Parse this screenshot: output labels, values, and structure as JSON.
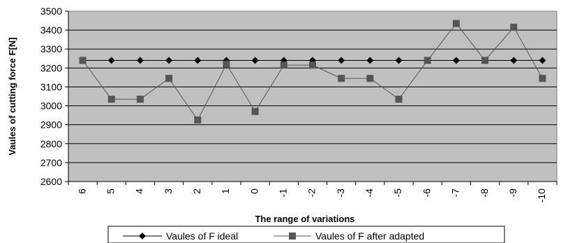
{
  "chart_data": {
    "type": "line",
    "title": "",
    "xlabel": "The range of  variations",
    "ylabel": "Vaules of cutting force F[N]",
    "categories": [
      "6",
      "5",
      "4",
      "3",
      "2",
      "1",
      "0",
      "-1",
      "-2",
      "-3",
      "-4",
      "-5",
      "-6",
      "-7",
      "-8",
      "-9",
      "-10"
    ],
    "y_ticks": [
      "3500",
      "3400",
      "3300",
      "3200",
      "3100",
      "3000",
      "2900",
      "2800",
      "2700",
      "2600"
    ],
    "ylim": [
      2600,
      3500
    ],
    "y_step": 100,
    "grid": true,
    "plot_background": "#c0c0c0",
    "legend_position": "bottom",
    "series": [
      {
        "name": "Vaules of F ideal",
        "marker": "diamond",
        "color": "#000000",
        "values": [
          3240,
          3240,
          3240,
          3240,
          3240,
          3240,
          3240,
          3240,
          3240,
          3240,
          3240,
          3240,
          3240,
          3240,
          3240,
          3240,
          3240
        ]
      },
      {
        "name": "Vaules of F after adapted",
        "marker": "square",
        "color": "#555555",
        "values": [
          3240,
          3035,
          3035,
          3145,
          2925,
          3220,
          2970,
          3215,
          3215,
          3145,
          3145,
          3035,
          3240,
          3435,
          3240,
          3415,
          3145
        ]
      }
    ]
  }
}
